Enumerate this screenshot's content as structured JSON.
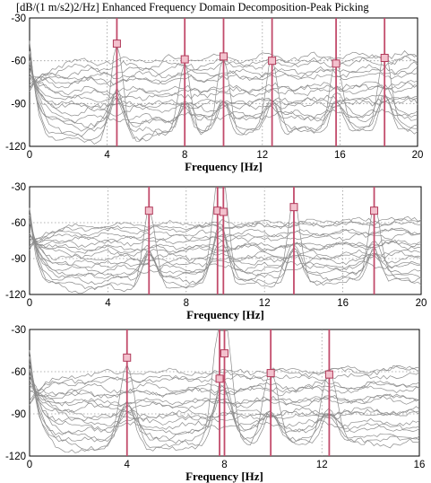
{
  "title": "[dB/(1 m/s2)2/Hz] Enhanced Frequency Domain Decomposition-Peak Picking",
  "chart_data": [
    {
      "type": "line",
      "xlabel": "Frequency [Hz]",
      "xlim": [
        0,
        20
      ],
      "ylim": [
        -120,
        -30
      ],
      "xticks": [
        "0",
        "4",
        "8",
        "12",
        "16",
        "20"
      ],
      "yticks": [
        "-30",
        "-60",
        "-90",
        "-120"
      ],
      "grid": true,
      "series_count": 18,
      "peaks": [
        {
          "x": 4.5,
          "y": -48
        },
        {
          "x": 8.0,
          "y": -59
        },
        {
          "x": 10.0,
          "y": -57
        },
        {
          "x": 12.5,
          "y": -60
        },
        {
          "x": 15.8,
          "y": -62
        },
        {
          "x": 18.3,
          "y": -58
        }
      ]
    },
    {
      "type": "line",
      "xlabel": "Frequency [Hz]",
      "xlim": [
        0,
        20
      ],
      "ylim": [
        -120,
        -30
      ],
      "xticks": [
        "0",
        "4",
        "8",
        "12",
        "16",
        "20"
      ],
      "yticks": [
        "-30",
        "-60",
        "-90",
        "-120"
      ],
      "grid": true,
      "series_count": 18,
      "peaks": [
        {
          "x": 6.1,
          "y": -50
        },
        {
          "x": 9.6,
          "y": -50
        },
        {
          "x": 9.9,
          "y": -51
        },
        {
          "x": 13.5,
          "y": -47
        },
        {
          "x": 17.6,
          "y": -50
        }
      ]
    },
    {
      "type": "line",
      "xlabel": "Frequency [Hz]",
      "xlim": [
        0,
        16
      ],
      "ylim": [
        -120,
        -30
      ],
      "xticks": [
        "0",
        "4",
        "8",
        "12",
        "16"
      ],
      "yticks": [
        "-30",
        "-60",
        "-90",
        "-120"
      ],
      "grid": true,
      "series_count": 18,
      "peaks": [
        {
          "x": 4.0,
          "y": -50
        },
        {
          "x": 7.8,
          "y": -65
        },
        {
          "x": 8.0,
          "y": -47
        },
        {
          "x": 9.9,
          "y": -61
        },
        {
          "x": 12.3,
          "y": -62
        }
      ]
    }
  ]
}
